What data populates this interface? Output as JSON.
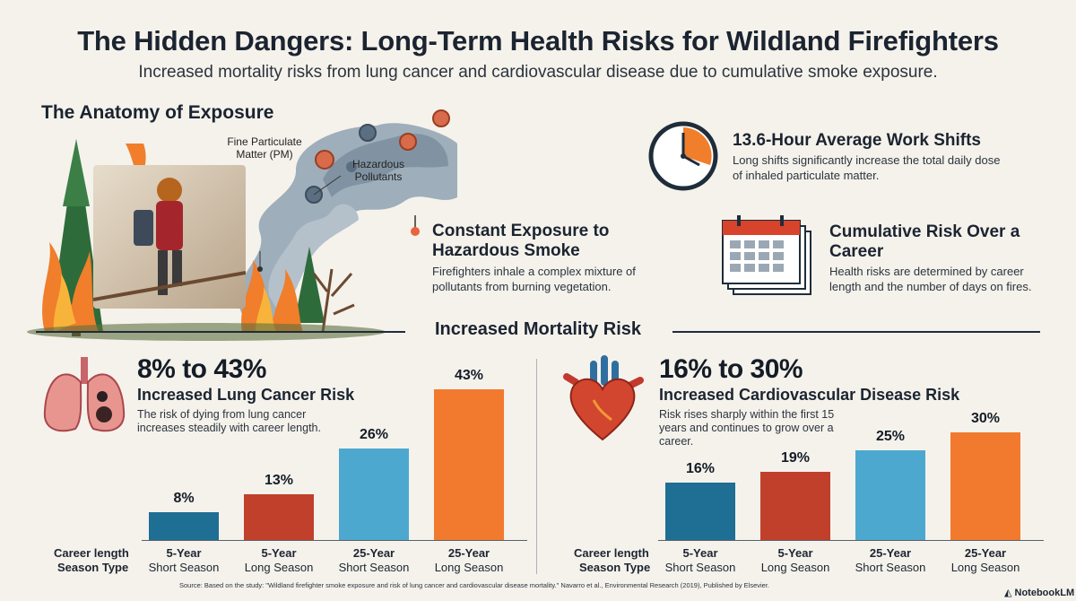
{
  "title": "The Hidden Dangers: Long-Term Health Risks for Wildland Firefighters",
  "subtitle": "Increased mortality risks from lung cancer and cardiovascular disease due to cumulative smoke exposure.",
  "anatomy": {
    "heading": "The Anatomy of Exposure",
    "pm_label": "Fine Particulate Matter (PM)",
    "hazard_label": "Hazardous Pollutants",
    "exposure_title": "Constant Exposure to Hazardous Smoke",
    "exposure_text": "Firefighters inhale a complex mixture of pollutants from burning vegetation."
  },
  "stats": {
    "shift_title": "13.6-Hour Average Work Shifts",
    "shift_text": "Long shifts significantly increase the total daily dose of inhaled particulate matter.",
    "career_title": "Cumulative Risk Over a Career",
    "career_text": "Health risks are determined by career length and the number of days on fires."
  },
  "section_heading": "Increased Mortality Risk",
  "axis_headers": [
    "Career length",
    "Season Type"
  ],
  "chart_data": [
    {
      "type": "bar",
      "range_label": "8% to 43%",
      "title": "Increased Lung Cancer Risk",
      "description": "The risk of dying from lung cancer increases steadily with career length.",
      "categories": [
        "5-Year Short Season",
        "5-Year Long Season",
        "25-Year Short Season",
        "25-Year Long Season"
      ],
      "career_length": [
        "5-Year",
        "5-Year",
        "25-Year",
        "25-Year"
      ],
      "season_type": [
        "Short Season",
        "Long Season",
        "Short Season",
        "Long Season"
      ],
      "values": [
        8,
        13,
        26,
        43
      ],
      "value_labels": [
        "8%",
        "13%",
        "26%",
        "43%"
      ],
      "bar_colors": [
        "#1f6e93",
        "#c0402b",
        "#4da8cf",
        "#f27a2e"
      ],
      "ylim": [
        0,
        43
      ]
    },
    {
      "type": "bar",
      "range_label": "16% to 30%",
      "title": "Increased Cardiovascular Disease Risk",
      "description": "Risk rises sharply within the first 15 years and continues to grow over a career.",
      "categories": [
        "5-Year Short Season",
        "5-Year Long Season",
        "25-Year Short Season",
        "25-Year Long Season"
      ],
      "career_length": [
        "5-Year",
        "5-Year",
        "25-Year",
        "25-Year"
      ],
      "season_type": [
        "Short Season",
        "Long Season",
        "Short Season",
        "Long Season"
      ],
      "values": [
        16,
        19,
        25,
        30
      ],
      "value_labels": [
        "16%",
        "19%",
        "25%",
        "30%"
      ],
      "bar_colors": [
        "#1f6e93",
        "#c0402b",
        "#4da8cf",
        "#f27a2e"
      ],
      "ylim": [
        0,
        30
      ]
    }
  ],
  "source": "Source: Based on the study: \"Wildland firefighter smoke exposure and risk of lung cancer and cardiovascular disease mortality.\" Navarro et al., Environmental Research (2019), Published by Elsevier.",
  "brand": "NotebookLM"
}
